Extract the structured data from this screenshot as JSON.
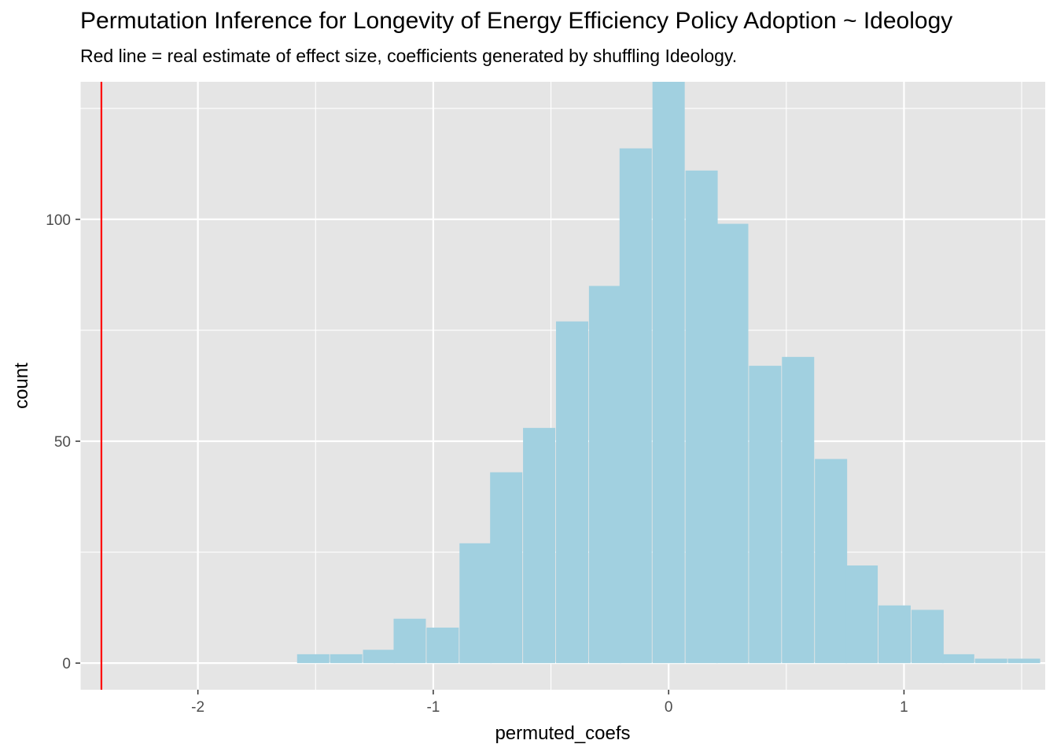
{
  "chart_data": {
    "type": "bar",
    "title": "Permutation Inference for Longevity of Energy Efficiency Policy Adoption ~ Ideology",
    "subtitle": "Red line = real estimate of effect size, coefficients generated by shuffling Ideology.",
    "xlabel": "permuted_coefs",
    "ylabel": "count",
    "xlim": [
      -2.5,
      1.6
    ],
    "ylim": [
      -6,
      131
    ],
    "x_ticks": [
      -2,
      -1,
      0,
      1
    ],
    "x_tick_labels": [
      "-2",
      "-1",
      "0",
      "1"
    ],
    "y_ticks": [
      0,
      50,
      100
    ],
    "y_tick_labels": [
      "0",
      "50",
      "100"
    ],
    "bin_width": 0.137,
    "bin_centers": [
      -1.51,
      -1.37,
      -1.23,
      -1.1,
      -0.96,
      -0.82,
      -0.69,
      -0.55,
      -0.41,
      -0.27,
      -0.14,
      0.0,
      0.14,
      0.27,
      0.41,
      0.55,
      0.69,
      0.82,
      0.96,
      1.1,
      1.23,
      1.37,
      1.51
    ],
    "counts": [
      2,
      2,
      3,
      10,
      8,
      27,
      43,
      53,
      77,
      85,
      116,
      131,
      111,
      99,
      67,
      69,
      46,
      22,
      13,
      12,
      2,
      1,
      1
    ],
    "fill_color": "#a1d0e0",
    "reference_line": {
      "x": -2.41,
      "color": "#ff0000"
    },
    "panel_background": "#e5e5e5",
    "grid": true,
    "legend": "none"
  }
}
